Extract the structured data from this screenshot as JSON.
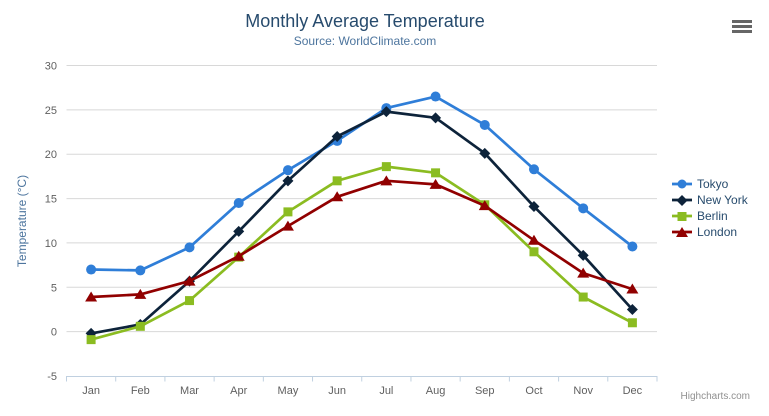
{
  "chart": {
    "credits_label": "Highcharts.com",
    "export_menu_tooltip": "Chart context menu"
  },
  "chart_data": {
    "type": "line",
    "title": "Monthly Average Temperature",
    "subtitle": "Source: WorldClimate.com",
    "categories": [
      "Jan",
      "Feb",
      "Mar",
      "Apr",
      "May",
      "Jun",
      "Jul",
      "Aug",
      "Sep",
      "Oct",
      "Nov",
      "Dec"
    ],
    "series": [
      {
        "name": "Tokyo",
        "color": "#2f7ed8",
        "marker": "circle",
        "values": [
          7.0,
          6.9,
          9.5,
          14.5,
          18.2,
          21.5,
          25.2,
          26.5,
          23.3,
          18.3,
          13.9,
          9.6
        ]
      },
      {
        "name": "New York",
        "color": "#0d233a",
        "marker": "diamond",
        "values": [
          -0.2,
          0.8,
          5.7,
          11.3,
          17.0,
          22.0,
          24.8,
          24.1,
          20.1,
          14.1,
          8.6,
          2.5
        ]
      },
      {
        "name": "Berlin",
        "color": "#8bbc21",
        "marker": "square",
        "values": [
          -0.9,
          0.6,
          3.5,
          8.4,
          13.5,
          17.0,
          18.6,
          17.9,
          14.3,
          9.0,
          3.9,
          1.0
        ]
      },
      {
        "name": "London",
        "color": "#910000",
        "marker": "triangle",
        "values": [
          3.9,
          4.2,
          5.7,
          8.5,
          11.9,
          15.2,
          17.0,
          16.6,
          14.2,
          10.3,
          6.6,
          4.8
        ]
      }
    ],
    "xlabel": "",
    "ylabel": "Temperature (°C)",
    "ylim": [
      -5,
      30
    ],
    "ytick_step": 5,
    "yticks": [
      -5,
      0,
      5,
      10,
      15,
      20,
      25,
      30
    ],
    "grid": true,
    "legend_position": "right-middle"
  },
  "colors": {
    "title": "#274b6d",
    "subtitle": "#4d759e",
    "axis_label": "#606060",
    "axis_title": "#4d759e",
    "axis_line": "#c0d0e0",
    "gridline": "#d8d8d8",
    "legend_text": "#274b6d",
    "credits": "#909090",
    "menu_icon": "#666666",
    "background": "#ffffff"
  }
}
